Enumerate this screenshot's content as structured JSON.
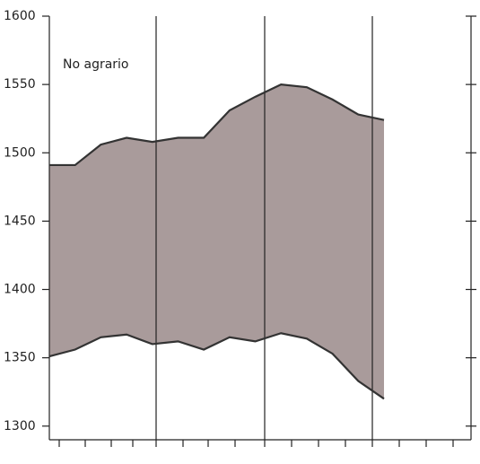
{
  "chart_data": {
    "type": "band",
    "annotation": "No agrario",
    "categories": [
      null,
      null,
      null,
      null,
      null,
      null,
      null,
      null,
      null,
      null,
      null,
      null,
      null,
      null
    ],
    "series": [
      {
        "color": "#333333",
        "values": [
          1491,
          1491,
          1506,
          1511,
          1508,
          1511,
          1511,
          1531,
          1541,
          1550,
          1548,
          1539,
          1528,
          1524
        ]
      },
      {
        "color": "#333333",
        "values": [
          1351,
          1356,
          1365,
          1367,
          1360,
          1362,
          1356,
          1365,
          1362,
          1368,
          1364,
          1353,
          1333,
          1320
        ]
      }
    ],
    "fill": "#a99b9b",
    "ylim": [
      1290,
      1600
    ],
    "yticks": [
      1300,
      1350,
      1400,
      1450,
      1500,
      1550,
      1600
    ]
  }
}
